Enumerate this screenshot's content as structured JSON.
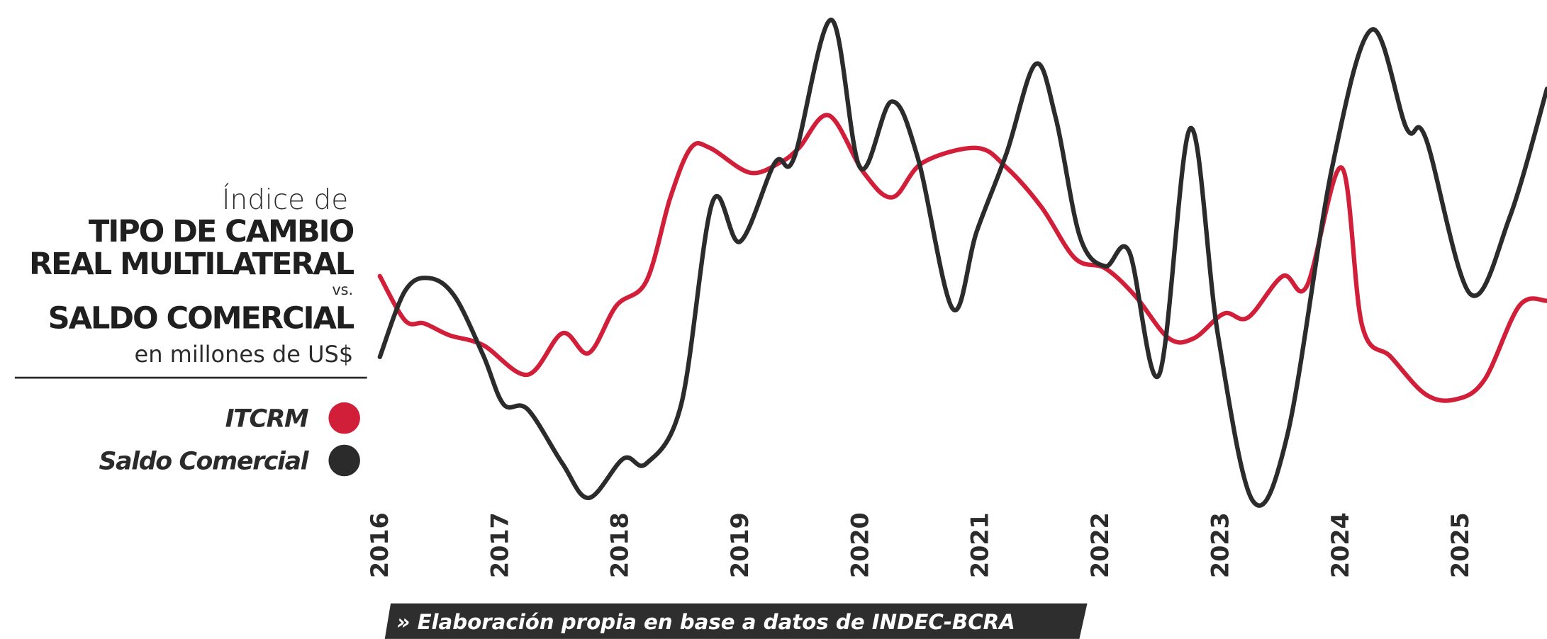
{
  "chart_data": {
    "type": "line",
    "title": [
      "Índice de",
      "TIPO DE CAMBIO",
      "REAL MULTILATERAL",
      "vs.",
      "SALDO COMERCIAL"
    ],
    "subtitle": "en millones de US$",
    "source": "» Elaboración propia en base a datos de INDEC-BCRA",
    "xlim": [
      2016,
      2025.72
    ],
    "xticks": [
      2016,
      2017,
      2018,
      2019,
      2020,
      2021,
      2022,
      2023,
      2024,
      2025
    ],
    "ylim": [
      0,
      100
    ],
    "series": [
      {
        "name": "ITCRM",
        "color": "#d11f3a",
        "x": [
          2016.0,
          2016.21,
          2016.37,
          2016.58,
          2016.86,
          2017.23,
          2017.52,
          2017.74,
          2017.97,
          2018.22,
          2018.42,
          2018.59,
          2018.75,
          2019.08,
          2019.33,
          2019.49,
          2019.74,
          2020.03,
          2020.27,
          2020.52,
          2020.97,
          2021.22,
          2021.51,
          2021.79,
          2022.04,
          2022.29,
          2022.57,
          2022.78,
          2023.03,
          2023.23,
          2023.52,
          2023.72,
          2024.01,
          2024.18,
          2024.42,
          2024.71,
          2024.96,
          2025.2,
          2025.49,
          2025.72
        ],
        "values": [
          48,
          39,
          38.4,
          36,
          34,
          28,
          36.4,
          32.4,
          42,
          47,
          64,
          74,
          74,
          69,
          71,
          74,
          80.6,
          69,
          64,
          71,
          74,
          70,
          62,
          51.6,
          49.6,
          44,
          35.4,
          35.4,
          40.4,
          39.6,
          48,
          46,
          70,
          38,
          31.6,
          24,
          23,
          27,
          42,
          43
        ]
      },
      {
        "name": "Saldo Comercial",
        "color": "#2b2b2b",
        "x": [
          2016.0,
          2016.21,
          2016.41,
          2016.62,
          2016.86,
          2017.03,
          2017.23,
          2017.52,
          2017.74,
          2018.03,
          2018.22,
          2018.51,
          2018.77,
          2019.0,
          2019.29,
          2019.45,
          2019.76,
          2020.0,
          2020.26,
          2020.48,
          2020.77,
          2020.97,
          2021.22,
          2021.46,
          2021.63,
          2021.83,
          2022.04,
          2022.24,
          2022.49,
          2022.75,
          2022.98,
          2023.27,
          2023.56,
          2023.93,
          2024.26,
          2024.55,
          2024.71,
          2025.08,
          2025.41,
          2025.72
        ],
        "values": [
          31.6,
          45,
          47.6,
          44,
          32,
          22,
          21,
          10,
          3,
          11,
          10,
          22,
          63,
          55,
          71,
          72,
          100,
          70,
          83.4,
          72,
          41.4,
          57,
          73,
          91,
          80,
          56,
          50,
          53,
          28,
          78,
          36,
          2.4,
          16,
          70,
          98,
          78,
          76,
          44.4,
          60,
          86
        ]
      }
    ]
  }
}
